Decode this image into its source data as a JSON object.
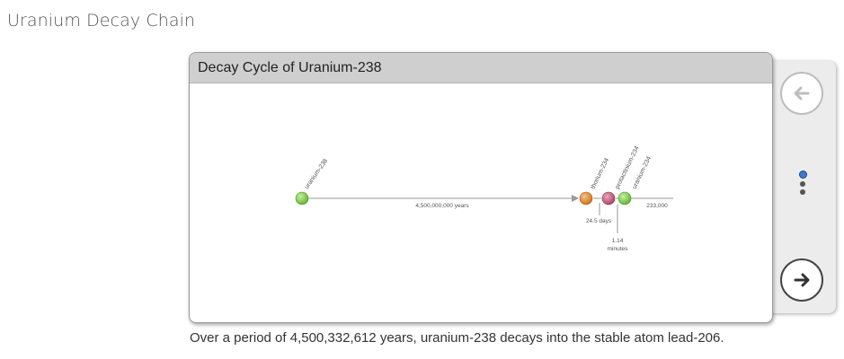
{
  "page": {
    "title": "Uranium Decay Chain"
  },
  "card": {
    "title": "Decay Cycle of Uranium-238"
  },
  "caption": "Over a period of 4,500,332,612 years, uranium-238 decays into the stable atom lead-206.",
  "navigation": {
    "prev_icon": "arrow-left-icon",
    "next_icon": "arrow-right-icon",
    "pages": [
      {
        "active": true
      },
      {
        "active": false
      },
      {
        "active": false
      }
    ]
  },
  "colors": {
    "green": "#7ac943",
    "orange": "#e08a2e",
    "pink": "#c75b7a",
    "line": "#9a9a9a"
  },
  "diagram": {
    "nodes": [
      {
        "label": "uranium-238",
        "color": "green"
      },
      {
        "label": "thorium-234",
        "color": "orange"
      },
      {
        "label": "protactinium-234",
        "color": "pink"
      },
      {
        "label": "uranium-234",
        "color": "green"
      }
    ],
    "durations": [
      {
        "text": "4,500,000,000 years"
      },
      {
        "text": "24.5 days"
      },
      {
        "lines": [
          "1.14",
          "minutes"
        ]
      },
      {
        "text": "233,000"
      }
    ]
  }
}
